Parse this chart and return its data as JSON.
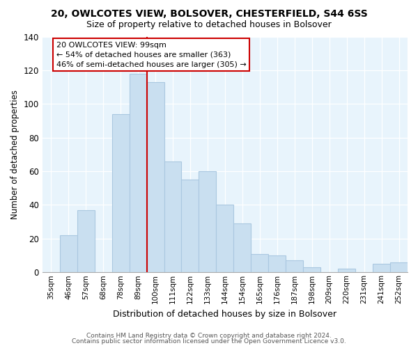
{
  "title1": "20, OWLCOTES VIEW, BOLSOVER, CHESTERFIELD, S44 6SS",
  "title2": "Size of property relative to detached houses in Bolsover",
  "xlabel": "Distribution of detached houses by size in Bolsover",
  "ylabel": "Number of detached properties",
  "bar_labels": [
    "35sqm",
    "46sqm",
    "57sqm",
    "68sqm",
    "78sqm",
    "89sqm",
    "100sqm",
    "111sqm",
    "122sqm",
    "133sqm",
    "144sqm",
    "154sqm",
    "165sqm",
    "176sqm",
    "187sqm",
    "198sqm",
    "209sqm",
    "220sqm",
    "231sqm",
    "241sqm",
    "252sqm"
  ],
  "bar_values": [
    0,
    22,
    37,
    0,
    94,
    118,
    113,
    66,
    55,
    60,
    40,
    29,
    11,
    10,
    7,
    3,
    0,
    2,
    0,
    5,
    6
  ],
  "bar_color": "#c9dff0",
  "bar_edge_color": "#aac8e0",
  "vline_color": "#cc0000",
  "annotation_lines": [
    "20 OWLCOTES VIEW: 99sqm",
    "← 54% of detached houses are smaller (363)",
    "46% of semi-detached houses are larger (305) →"
  ],
  "ylim": [
    0,
    140
  ],
  "yticks": [
    0,
    20,
    40,
    60,
    80,
    100,
    120,
    140
  ],
  "footer1": "Contains HM Land Registry data © Crown copyright and database right 2024.",
  "footer2": "Contains public sector information licensed under the Open Government Licence v3.0.",
  "bg_color": "#e8f4fc"
}
